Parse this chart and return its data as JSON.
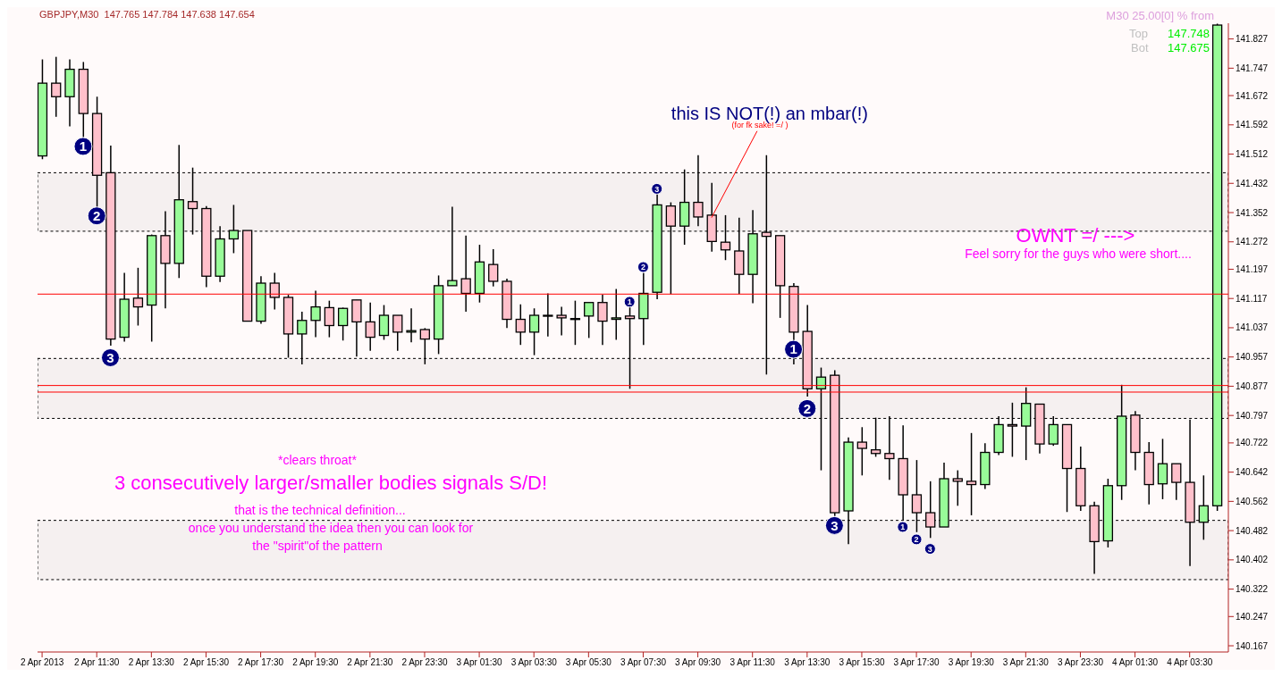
{
  "chart_data": {
    "type": "candlestick",
    "title": "GBPJPY,M30  147.765 147.784 147.638 147.654",
    "x": [
      "2013-04-02T09:30",
      "2013-04-02T10:00",
      "2013-04-02T10:30",
      "2013-04-02T11:00",
      "2013-04-02T11:30",
      "2013-04-02T12:00",
      "2013-04-02T12:30",
      "2013-04-02T13:00",
      "2013-04-02T13:30",
      "2013-04-02T14:00",
      "2013-04-02T14:30",
      "2013-04-02T15:00",
      "2013-04-02T15:30",
      "2013-04-02T16:00",
      "2013-04-02T16:30",
      "2013-04-02T17:00",
      "2013-04-02T17:30",
      "2013-04-02T18:00",
      "2013-04-02T18:30",
      "2013-04-02T19:00",
      "2013-04-02T19:30",
      "2013-04-02T20:00",
      "2013-04-02T20:30",
      "2013-04-02T21:00",
      "2013-04-02T21:30",
      "2013-04-02T22:00",
      "2013-04-02T22:30",
      "2013-04-02T23:00",
      "2013-04-02T23:30",
      "2013-04-03T00:00",
      "2013-04-03T00:30",
      "2013-04-03T01:00",
      "2013-04-03T01:30",
      "2013-04-03T02:00",
      "2013-04-03T02:30",
      "2013-04-03T03:00",
      "2013-04-03T03:30",
      "2013-04-03T04:00",
      "2013-04-03T04:30",
      "2013-04-03T05:00",
      "2013-04-03T05:30",
      "2013-04-03T06:00",
      "2013-04-03T06:30",
      "2013-04-03T07:00",
      "2013-04-03T07:30",
      "2013-04-03T08:00",
      "2013-04-03T08:30",
      "2013-04-03T09:00",
      "2013-04-03T09:30",
      "2013-04-03T10:00",
      "2013-04-03T10:30",
      "2013-04-03T11:00",
      "2013-04-03T11:30",
      "2013-04-03T12:00",
      "2013-04-03T12:30",
      "2013-04-03T13:00",
      "2013-04-03T13:30",
      "2013-04-03T14:00",
      "2013-04-03T14:30",
      "2013-04-03T15:00",
      "2013-04-03T15:30",
      "2013-04-03T16:00",
      "2013-04-03T16:30",
      "2013-04-03T17:00",
      "2013-04-03T17:30",
      "2013-04-03T18:00",
      "2013-04-03T18:30",
      "2013-04-03T19:00",
      "2013-04-03T19:30",
      "2013-04-03T20:00",
      "2013-04-03T20:30",
      "2013-04-03T21:00",
      "2013-04-03T21:30",
      "2013-04-03T22:00",
      "2013-04-03T22:30",
      "2013-04-03T23:00",
      "2013-04-03T23:30",
      "2013-04-04T00:00",
      "2013-04-04T00:30",
      "2013-04-04T01:00",
      "2013-04-04T01:30",
      "2013-04-04T02:00",
      "2013-04-04T02:30",
      "2013-04-04T03:00",
      "2013-04-04T03:30",
      "2013-04-04T04:00",
      "2013-04-04T04:30"
    ],
    "ohlc": [
      [
        141.507,
        141.771,
        141.498,
        141.706
      ],
      [
        141.706,
        141.778,
        141.614,
        141.669
      ],
      [
        141.669,
        141.771,
        141.588,
        141.744
      ],
      [
        141.744,
        141.764,
        141.558,
        141.623
      ],
      [
        141.623,
        141.669,
        141.366,
        141.454
      ],
      [
        141.461,
        141.535,
        140.988,
        141.006
      ],
      [
        141.011,
        141.187,
        140.999,
        141.115
      ],
      [
        141.118,
        141.201,
        141.043,
        141.094
      ],
      [
        141.099,
        141.292,
        140.999,
        141.289
      ],
      [
        141.289,
        141.356,
        141.09,
        141.213
      ],
      [
        141.213,
        141.537,
        141.173,
        141.387
      ],
      [
        141.382,
        141.475,
        141.292,
        141.363
      ],
      [
        141.363,
        141.37,
        141.148,
        141.178
      ],
      [
        141.178,
        141.315,
        141.162,
        141.28
      ],
      [
        141.28,
        141.373,
        141.241,
        141.303
      ],
      [
        141.303,
        141.303,
        141.055,
        141.055
      ],
      [
        141.055,
        141.178,
        141.048,
        141.159
      ],
      [
        141.159,
        141.187,
        141.087,
        141.12
      ],
      [
        141.12,
        141.127,
        140.955,
        141.02
      ],
      [
        141.02,
        141.081,
        140.937,
        141.057
      ],
      [
        141.057,
        141.138,
        141.011,
        141.094
      ],
      [
        141.092,
        141.111,
        141.011,
        141.043
      ],
      [
        141.043,
        141.092,
        141.002,
        141.09
      ],
      [
        141.113,
        141.113,
        140.958,
        141.053
      ],
      [
        141.053,
        141.106,
        140.974,
        141.011
      ],
      [
        141.016,
        141.099,
        141.004,
        141.071
      ],
      [
        141.071,
        141.071,
        140.974,
        141.025
      ],
      [
        141.025,
        141.09,
        140.997,
        141.029
      ],
      [
        141.032,
        141.036,
        140.937,
        141.006
      ],
      [
        141.006,
        141.18,
        140.965,
        141.152
      ],
      [
        141.152,
        141.368,
        141.152,
        141.166
      ],
      [
        141.171,
        141.289,
        141.081,
        141.131
      ],
      [
        141.131,
        141.264,
        141.106,
        141.217
      ],
      [
        141.21,
        141.252,
        141.15,
        141.164
      ],
      [
        141.164,
        141.171,
        141.036,
        141.06
      ],
      [
        141.06,
        141.101,
        140.99,
        141.025
      ],
      [
        141.025,
        141.09,
        140.962,
        141.071
      ],
      [
        141.071,
        141.131,
        141.013,
        141.071
      ],
      [
        141.071,
        141.094,
        141.016,
        141.064
      ],
      [
        141.062,
        141.111,
        140.99,
        141.062
      ],
      [
        141.069,
        141.106,
        141.009,
        141.106
      ],
      [
        141.106,
        141.127,
        140.99,
        141.055
      ],
      [
        141.06,
        141.143,
        141.004,
        141.064
      ],
      [
        141.069,
        141.094,
        140.87,
        141.062
      ],
      [
        141.062,
        141.187,
        140.99,
        141.131
      ],
      [
        141.134,
        141.405,
        141.115,
        141.373
      ],
      [
        141.37,
        141.38,
        141.129,
        141.315
      ],
      [
        141.315,
        141.47,
        141.264,
        141.38
      ],
      [
        141.38,
        141.509,
        141.315,
        141.34
      ],
      [
        141.345,
        141.433,
        141.245,
        141.273
      ],
      [
        141.271,
        141.345,
        141.222,
        141.25
      ],
      [
        141.247,
        141.338,
        141.129,
        141.183
      ],
      [
        141.183,
        141.359,
        141.104,
        141.294
      ],
      [
        141.298,
        141.509,
        140.909,
        141.287
      ],
      [
        141.289,
        141.289,
        141.064,
        141.152
      ],
      [
        141.15,
        141.159,
        140.937,
        141.025
      ],
      [
        141.027,
        141.099,
        140.849,
        140.87
      ],
      [
        140.87,
        140.928,
        140.647,
        140.902
      ],
      [
        140.907,
        140.921,
        140.522,
        140.531
      ],
      [
        140.536,
        140.737,
        140.445,
        140.724
      ],
      [
        140.724,
        140.765,
        140.633,
        140.707
      ],
      [
        140.703,
        140.791,
        140.684,
        140.693
      ],
      [
        140.693,
        140.795,
        140.621,
        140.679
      ],
      [
        140.679,
        140.77,
        140.51,
        140.58
      ],
      [
        140.58,
        140.675,
        140.478,
        140.531
      ],
      [
        140.531,
        140.617,
        140.462,
        140.492
      ],
      [
        140.492,
        140.668,
        140.492,
        140.624
      ],
      [
        140.624,
        140.647,
        140.55,
        140.617
      ],
      [
        140.617,
        140.749,
        140.524,
        140.608
      ],
      [
        140.608,
        140.721,
        140.596,
        140.696
      ],
      [
        140.696,
        140.795,
        140.689,
        140.772
      ],
      [
        140.772,
        140.832,
        140.684,
        140.768
      ],
      [
        140.768,
        140.874,
        140.675,
        140.83
      ],
      [
        140.828,
        140.828,
        140.693,
        140.719
      ],
      [
        140.719,
        140.795,
        140.714,
        140.772
      ],
      [
        140.772,
        140.772,
        140.533,
        140.652
      ],
      [
        140.652,
        140.712,
        140.536,
        140.55
      ],
      [
        140.55,
        140.561,
        140.364,
        140.452
      ],
      [
        140.454,
        140.624,
        140.436,
        140.605
      ],
      [
        140.605,
        140.881,
        140.566,
        140.795
      ],
      [
        140.798,
        140.809,
        140.647,
        140.696
      ],
      [
        140.696,
        140.724,
        140.554,
        140.608
      ],
      [
        140.61,
        140.733,
        140.568,
        140.665
      ],
      [
        140.665,
        140.665,
        140.566,
        140.614
      ],
      [
        140.614,
        140.786,
        140.385,
        140.505
      ],
      [
        140.505,
        140.633,
        140.457,
        140.55
      ],
      [
        140.55,
        141.869,
        140.536,
        141.865
      ]
    ],
    "colors": [
      "#98fb98",
      "#ffc0cb",
      "#98fb98",
      "#ffc0cb",
      "#ffc0cb",
      "#ffc0cb",
      "#98fb98",
      "#ffc0cb",
      "#98fb98",
      "#ffc0cb",
      "#98fb98",
      "#ffc0cb",
      "#ffc0cb",
      "#98fb98",
      "#98fb98",
      "#ffc0cb",
      "#98fb98",
      "#ffc0cb",
      "#ffc0cb",
      "#98fb98",
      "#98fb98",
      "#ffc0cb",
      "#98fb98",
      "#ffc0cb",
      "#ffc0cb",
      "#98fb98",
      "#ffc0cb",
      "#98fb98",
      "#ffc0cb",
      "#98fb98",
      "#98fb98",
      "#ffc0cb",
      "#98fb98",
      "#ffc0cb",
      "#ffc0cb",
      "#ffc0cb",
      "#98fb98",
      "#c0c0c0",
      "#ffc0cb",
      "#000000",
      "#98fb98",
      "#ffc0cb",
      "#98fb98",
      "#ffc0cb",
      "#98fb98",
      "#98fb98",
      "#ffc0cb",
      "#98fb98",
      "#ffc0cb",
      "#ffc0cb",
      "#ffc0cb",
      "#ffc0cb",
      "#98fb98",
      "#ffc0cb",
      "#ffc0cb",
      "#ffc0cb",
      "#ffc0cb",
      "#98fb98",
      "#ffc0cb",
      "#98fb98",
      "#ffc0cb",
      "#ffc0cb",
      "#ffc0cb",
      "#ffc0cb",
      "#ffc0cb",
      "#ffc0cb",
      "#98fb98",
      "#ffc0cb",
      "#ffc0cb",
      "#98fb98",
      "#98fb98",
      "#ffc0cb",
      "#98fb98",
      "#ffc0cb",
      "#98fb98",
      "#ffc0cb",
      "#ffc0cb",
      "#ffc0cb",
      "#98fb98",
      "#98fb98",
      "#ffc0cb",
      "#ffc0cb",
      "#98fb98",
      "#ffc0cb",
      "#ffc0cb",
      "#98fb98",
      "#98fb98"
    ],
    "xlim": [
      "2013-04-02T09:20",
      "2013-04-04T04:55"
    ],
    "xticks": [
      {
        "value": "2013-04-02T09:30",
        "label": "2 Apr 2013"
      },
      {
        "value": "2013-04-02T11:30",
        "label": "2 Apr 11:30"
      },
      {
        "value": "2013-04-02T13:30",
        "label": "2 Apr 13:30"
      },
      {
        "value": "2013-04-02T15:30",
        "label": "2 Apr 15:30"
      },
      {
        "value": "2013-04-02T17:30",
        "label": "2 Apr 17:30"
      },
      {
        "value": "2013-04-02T19:30",
        "label": "2 Apr 19:30"
      },
      {
        "value": "2013-04-02T21:30",
        "label": "2 Apr 21:30"
      },
      {
        "value": "2013-04-02T23:30",
        "label": "2 Apr 23:30"
      },
      {
        "value": "2013-04-03T01:30",
        "label": "3 Apr 01:30"
      },
      {
        "value": "2013-04-03T03:30",
        "label": "3 Apr 03:30"
      },
      {
        "value": "2013-04-03T05:30",
        "label": "3 Apr 05:30"
      },
      {
        "value": "2013-04-03T07:30",
        "label": "3 Apr 07:30"
      },
      {
        "value": "2013-04-03T09:30",
        "label": "3 Apr 09:30"
      },
      {
        "value": "2013-04-03T11:30",
        "label": "3 Apr 11:30"
      },
      {
        "value": "2013-04-03T13:30",
        "label": "3 Apr 13:30"
      },
      {
        "value": "2013-04-03T15:30",
        "label": "3 Apr 15:30"
      },
      {
        "value": "2013-04-03T17:30",
        "label": "3 Apr 17:30"
      },
      {
        "value": "2013-04-03T19:30",
        "label": "3 Apr 19:30"
      },
      {
        "value": "2013-04-03T21:30",
        "label": "3 Apr 21:30"
      },
      {
        "value": "2013-04-03T23:30",
        "label": "3 Apr 23:30"
      },
      {
        "value": "2013-04-04T01:30",
        "label": "4 Apr 01:30"
      },
      {
        "value": "2013-04-04T03:30",
        "label": "4 Apr 03:30"
      }
    ],
    "ylim": [
      140.15,
      141.87
    ],
    "yticks": [
      140.167,
      140.247,
      140.322,
      140.402,
      140.482,
      140.562,
      140.642,
      140.722,
      140.797,
      140.877,
      140.957,
      141.037,
      141.117,
      141.197,
      141.272,
      141.352,
      141.432,
      141.512,
      141.592,
      141.672,
      141.747,
      141.827
    ],
    "bands": [
      {
        "axis": "y",
        "from": 141.301,
        "to": 141.461,
        "color": "#000000"
      },
      {
        "axis": "y",
        "from": 140.789,
        "to": 140.953,
        "color": "#000000"
      },
      {
        "axis": "y",
        "from": 140.348,
        "to": 140.51,
        "color": "#000000"
      }
    ],
    "ref_lines": [
      {
        "axis": "y",
        "value": 141.129,
        "color": "#ff0000"
      },
      {
        "axis": "y",
        "value": 140.879,
        "color": "#ff0000"
      },
      {
        "axis": "y",
        "value": 140.861,
        "color": "#ff0000"
      }
    ],
    "annotations": [
      {
        "text": "this IS NOT(!) an mbar(!)",
        "x": "2013-04-03T10:00",
        "y": 141.338
      },
      "(for fk sake! =/ )",
      {
        "text": "1",
        "x": "2013-04-02T11:00",
        "y": 141.533
      },
      {
        "text": "2",
        "x": "2013-04-02T11:30",
        "y": 141.343
      },
      {
        "text": "3",
        "x": "2013-04-02T12:00",
        "y": 140.955
      },
      {
        "text": "1",
        "x": "2013-04-03T07:00",
        "y": 141.108
      },
      {
        "text": "2",
        "x": "2013-04-03T07:30",
        "y": 141.203
      },
      {
        "text": "3",
        "x": "2013-04-03T08:00",
        "y": 141.417
      },
      {
        "text": "1",
        "x": "2013-04-03T13:00",
        "y": 140.978
      },
      {
        "text": "2",
        "x": "2013-04-03T13:30",
        "y": 140.816
      },
      {
        "text": "3",
        "x": "2013-04-03T14:30",
        "y": 140.496
      },
      {
        "text": "1",
        "x": "2013-04-03T17:00",
        "y": 140.492
      },
      {
        "text": "2",
        "x": "2013-04-03T17:30",
        "y": 140.458
      },
      {
        "text": "3",
        "x": "2013-04-03T18:00",
        "y": 140.432
      },
      "*clears throat*",
      "3 consecutively larger/smaller bodies signals S/D!",
      "that is the technical definition...",
      "once you understand the idea then you can look for",
      "the \"spirit\"of the pattern",
      "OWNT =/ --->",
      "Feel sorry for the guys who were short....",
      "M30 25.00[0] % from",
      "Top",
      "147.748",
      "Bot",
      "147.675"
    ]
  }
}
